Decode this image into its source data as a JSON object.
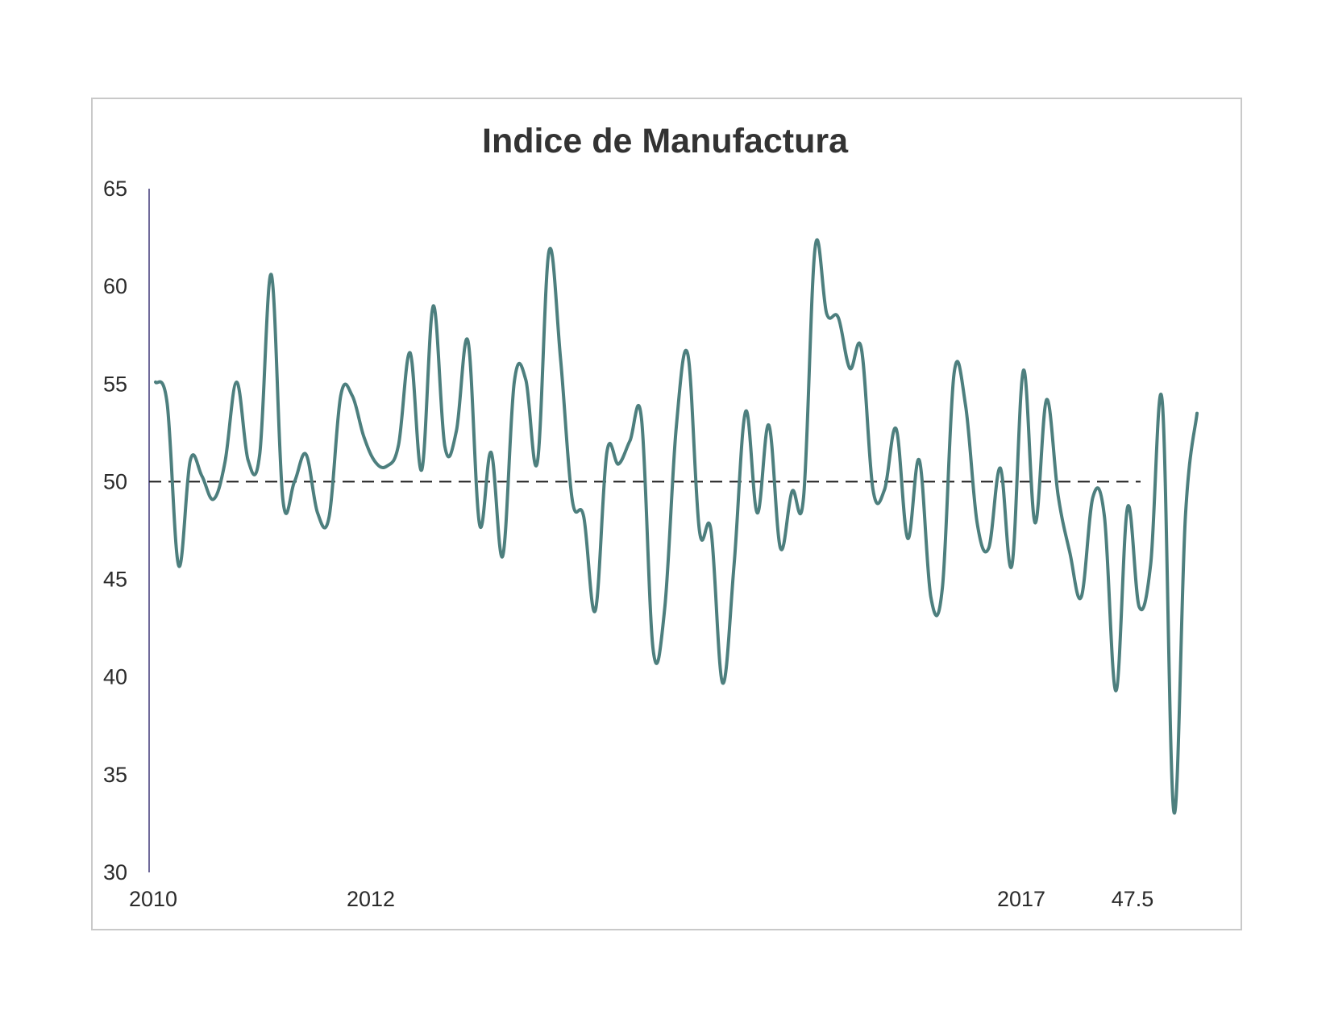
{
  "chart_data": {
    "type": "line",
    "title": "Indice de Manufactura",
    "xlabel": "",
    "ylabel": "",
    "ylim": [
      30,
      65
    ],
    "yticks": [
      "30",
      "35",
      "40",
      "45",
      "50",
      "55",
      "60",
      "65"
    ],
    "xtick_labels": [
      "2010",
      "2012",
      "2017",
      "47.5"
    ],
    "reference_line": 50,
    "grid": false,
    "legend": "none",
    "series": [
      {
        "color": "#4d7f7e",
        "values": [
          55.1,
          54.0,
          45.7,
          51.1,
          50.3,
          49.1,
          51.0,
          55.1,
          51.1,
          51.4,
          60.6,
          49.1,
          50.0,
          51.4,
          48.4,
          48.2,
          54.4,
          54.4,
          52.3,
          51.0,
          50.8,
          51.9,
          56.6,
          50.6,
          59.0,
          51.8,
          52.6,
          57.2,
          47.8,
          51.5,
          46.2,
          55.1,
          55.2,
          51.0,
          61.8,
          56.3,
          49.1,
          48.2,
          43.4,
          51.5,
          50.9,
          52.1,
          53.2,
          41.4,
          43.5,
          52.8,
          56.5,
          47.5,
          47.5,
          39.7,
          45.8,
          53.6,
          48.4,
          52.9,
          46.6,
          49.5,
          49.2,
          62.0,
          58.6,
          58.4,
          55.8,
          56.8,
          49.6,
          49.6,
          52.7,
          47.1,
          51.1,
          44.1,
          44.6,
          55.5,
          53.9,
          47.9,
          46.6,
          50.7,
          45.7,
          55.7,
          47.9,
          54.2,
          49.3,
          46.4,
          44.1,
          49.2,
          48.2,
          39.3,
          48.7,
          43.6,
          45.8,
          54.1,
          33.1,
          48.2,
          53.5
        ]
      }
    ]
  }
}
